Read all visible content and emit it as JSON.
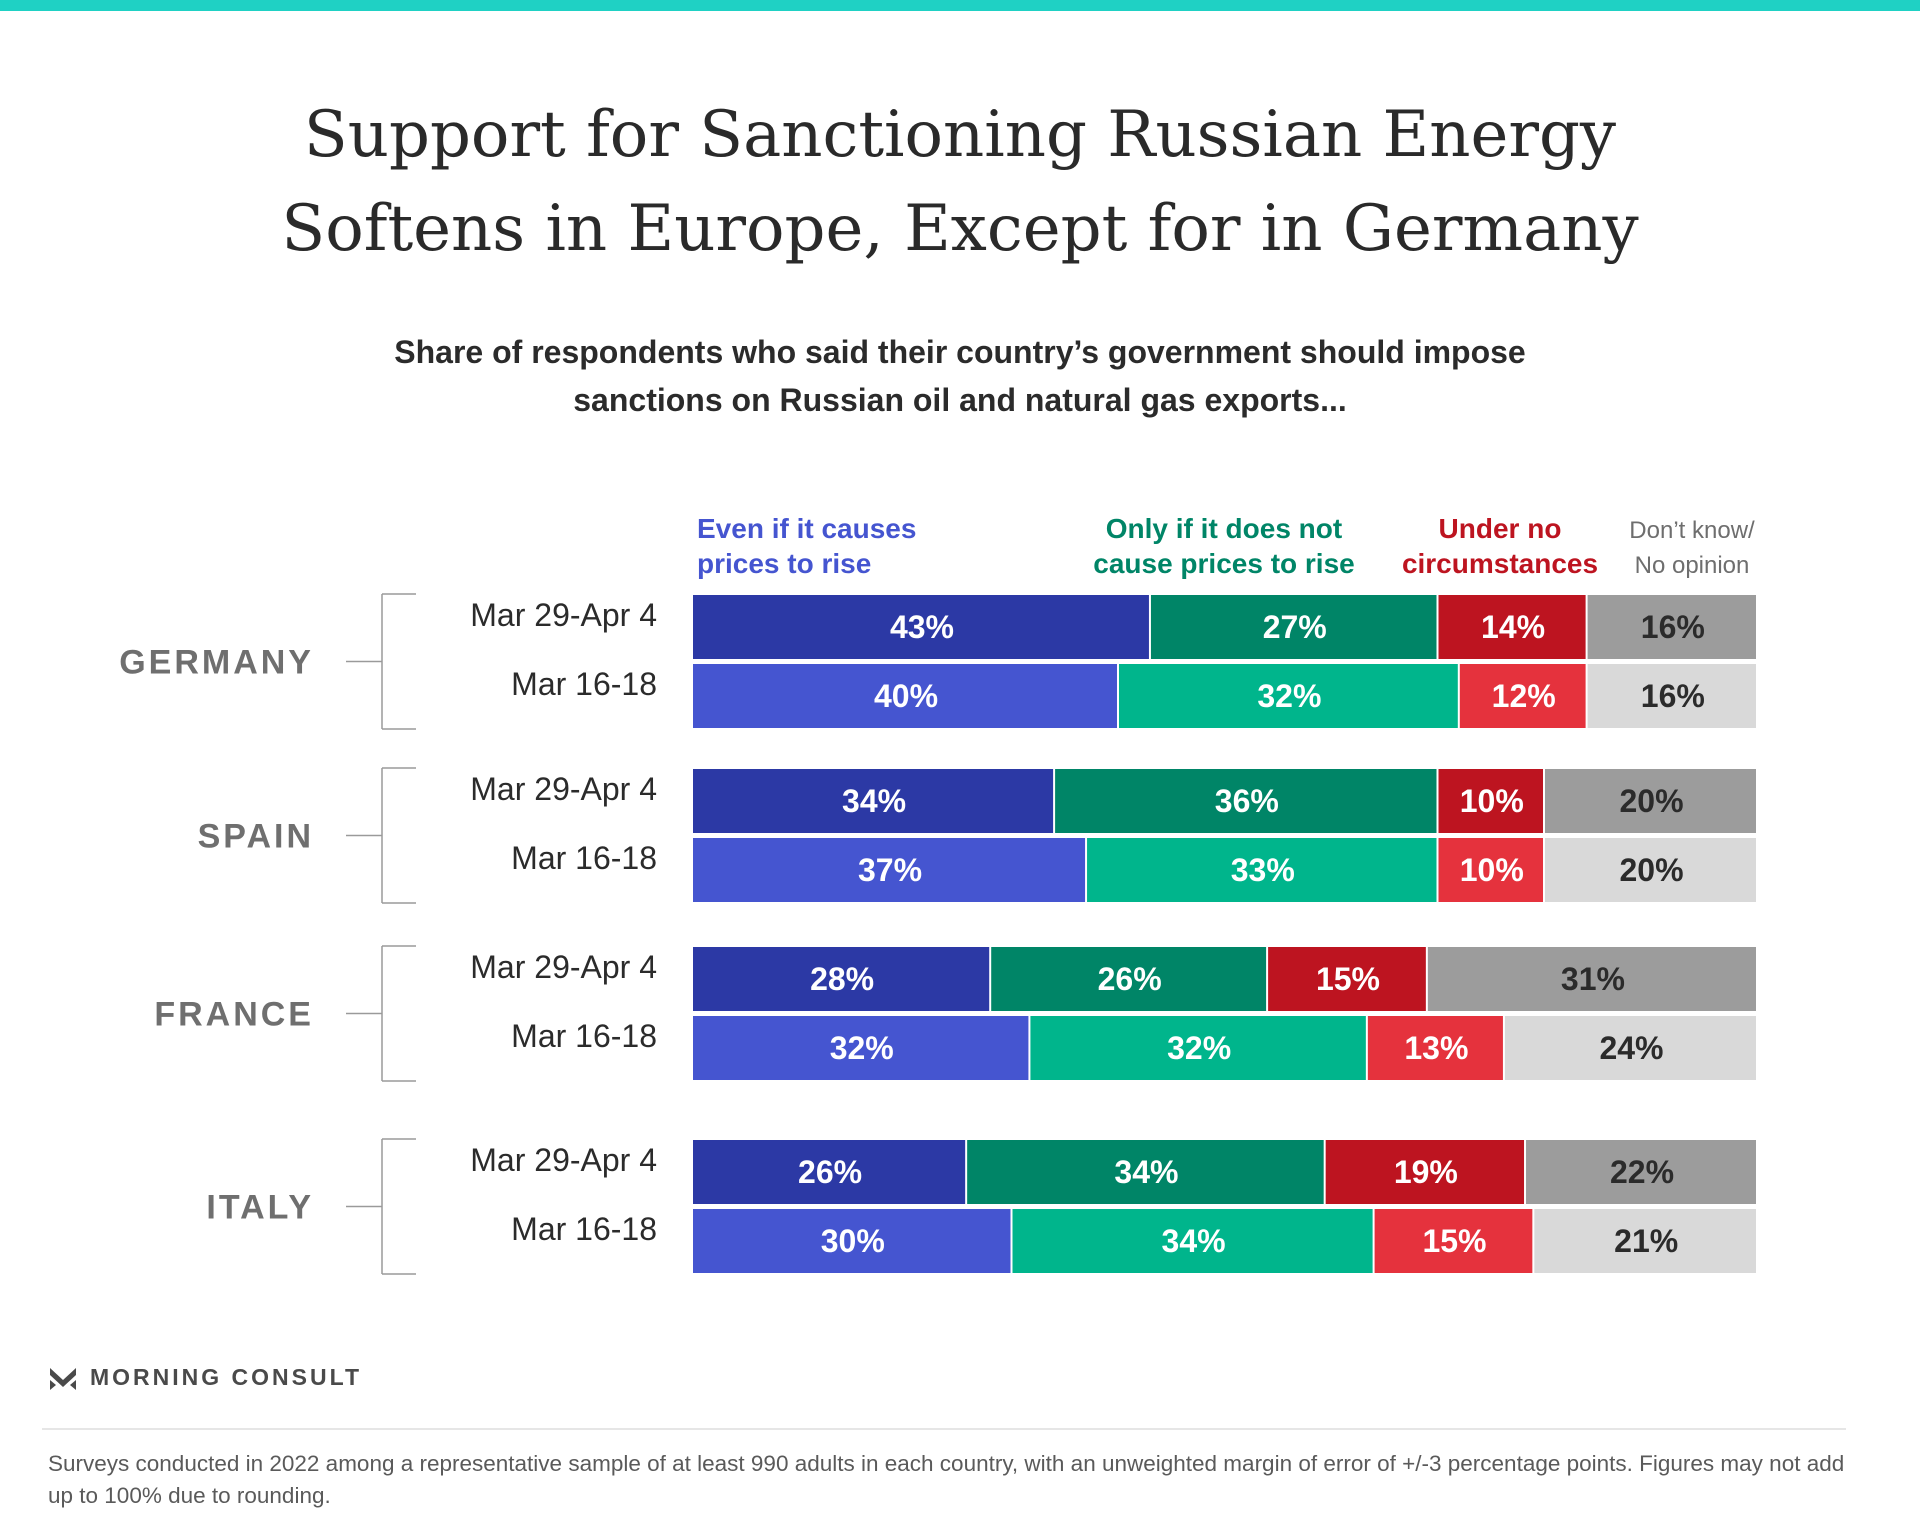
{
  "colors": {
    "accent_bar": "#1fd1c4",
    "even_if_recent": "#2c39a5",
    "even_if_earlier": "#4555d0",
    "only_if_recent": "#008567",
    "only_if_earlier": "#00b58c",
    "under_no_recent": "#bd1420",
    "under_no_earlier": "#e5323d",
    "dont_know_recent": "#9c9c9c",
    "dont_know_earlier": "#d9d9d9",
    "country_label": "#6f6f6f",
    "legend_dont_know": "#6e6e6e"
  },
  "title_lines": [
    "Support for Sanctioning Russian Energy",
    "Softens in Europe, Except for in Germany"
  ],
  "subtitle_lines": [
    "Share of respondents who said their country’s government should impose",
    "sanctions on Russian oil and natural gas exports..."
  ],
  "brand": {
    "logo_icon": "morning-consult-m-icon",
    "name": "MORNING CONSULT"
  },
  "footnote": "Surveys conducted in 2022 among a representative sample of at least 990 adults in each country, with an unweighted margin of error of +/-3 percentage points. Figures may not add up to 100% due to rounding.",
  "chart_data": {
    "type": "bar",
    "orientation": "horizontal",
    "stacked": true,
    "legend_position": "top",
    "grid": false,
    "xlim": [
      0,
      100
    ],
    "categories": [
      "Even if it causes prices to rise",
      "Only if it does not cause prices to rise",
      "Under no circumstances",
      "Don’t know/ No opinion"
    ],
    "legend_lines": [
      [
        "Even if it causes",
        "prices to rise"
      ],
      [
        "Only if it does not",
        "cause prices to rise"
      ],
      [
        "Under no",
        "circumstances"
      ],
      [
        "Don’t know/",
        "No opinion"
      ]
    ],
    "groups": [
      {
        "country": "GERMANY",
        "rows": [
          {
            "period": "Mar 29-Apr 4",
            "values": [
              43,
              27,
              14,
              16
            ],
            "labels": [
              "43%",
              "27%",
              "14%",
              "16%"
            ]
          },
          {
            "period": "Mar 16-18",
            "values": [
              40,
              32,
              12,
              16
            ],
            "labels": [
              "40%",
              "32%",
              "12%",
              "16%"
            ]
          }
        ]
      },
      {
        "country": "SPAIN",
        "rows": [
          {
            "period": "Mar 29-Apr 4",
            "values": [
              34,
              36,
              10,
              20
            ],
            "labels": [
              "34%",
              "36%",
              "10%",
              "20%"
            ]
          },
          {
            "period": "Mar 16-18",
            "values": [
              37,
              33,
              10,
              20
            ],
            "labels": [
              "37%",
              "33%",
              "10%",
              "20%"
            ]
          }
        ]
      },
      {
        "country": "FRANCE",
        "rows": [
          {
            "period": "Mar 29-Apr 4",
            "values": [
              28,
              26,
              15,
              31
            ],
            "labels": [
              "28%",
              "26%",
              "15%",
              "31%"
            ]
          },
          {
            "period": "Mar 16-18",
            "values": [
              32,
              32,
              13,
              24
            ],
            "labels": [
              "32%",
              "32%",
              "13%",
              "24%"
            ]
          }
        ]
      },
      {
        "country": "ITALY",
        "rows": [
          {
            "period": "Mar 29-Apr 4",
            "values": [
              26,
              34,
              19,
              22
            ],
            "labels": [
              "26%",
              "34%",
              "19%",
              "22%"
            ]
          },
          {
            "period": "Mar 16-18",
            "values": [
              30,
              34,
              15,
              21
            ],
            "labels": [
              "30%",
              "34%",
              "15%",
              "21%"
            ]
          }
        ]
      }
    ]
  }
}
